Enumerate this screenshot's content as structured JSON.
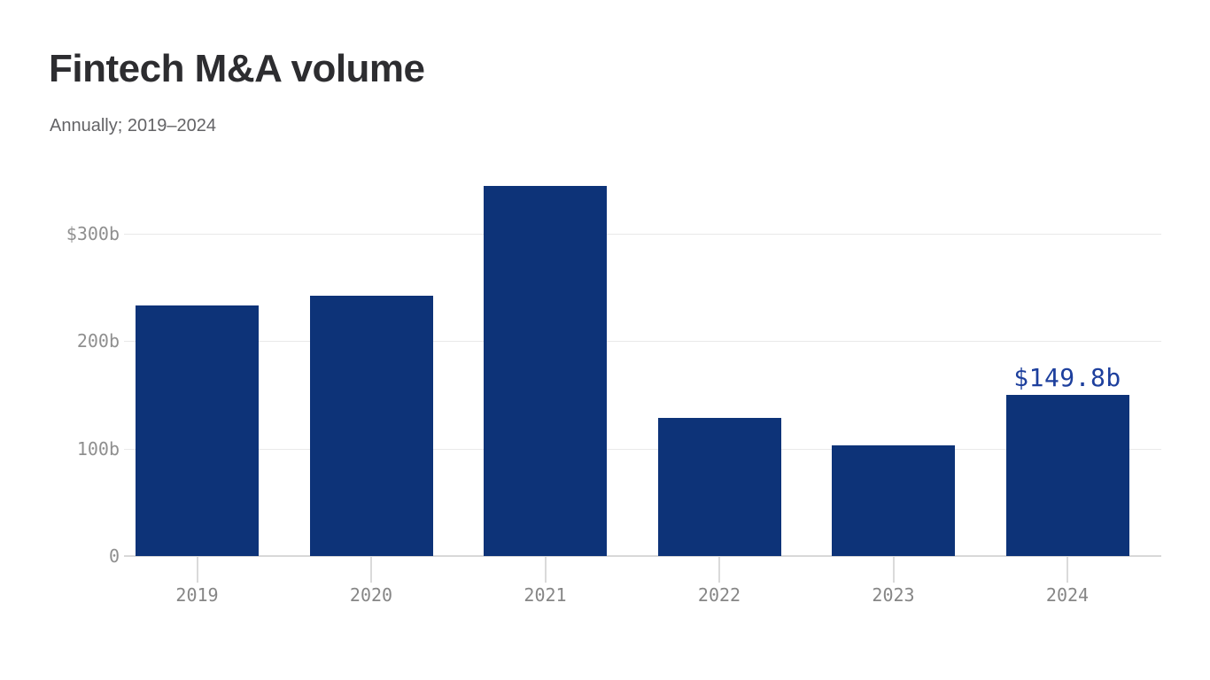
{
  "page": {
    "background": "#ffffff"
  },
  "chart": {
    "title": "Fintech M&A volume",
    "subtitle": "Annually; 2019–2024"
  },
  "chart_data": {
    "type": "bar",
    "title": "Fintech M&A volume",
    "subtitle": "Annually; 2019–2024",
    "categories": [
      "2019",
      "2020",
      "2021",
      "2022",
      "2023",
      "2024"
    ],
    "values": [
      233,
      242,
      345,
      129,
      103,
      149.8
    ],
    "unit": "USD billions",
    "xlabel": "",
    "ylabel": "",
    "ylim": [
      0,
      360
    ],
    "ytick_values": [
      300,
      200,
      100,
      0
    ],
    "ytick_labels": [
      "$300b",
      "200b",
      "100b",
      "0"
    ],
    "grid": "horizontal",
    "legend": "none",
    "bar_color": "#0d3378",
    "axis_text_color": "#8f8f8f",
    "annotation": {
      "category": "2024",
      "text": "$149.8b",
      "color": "#1d3f9d"
    }
  }
}
